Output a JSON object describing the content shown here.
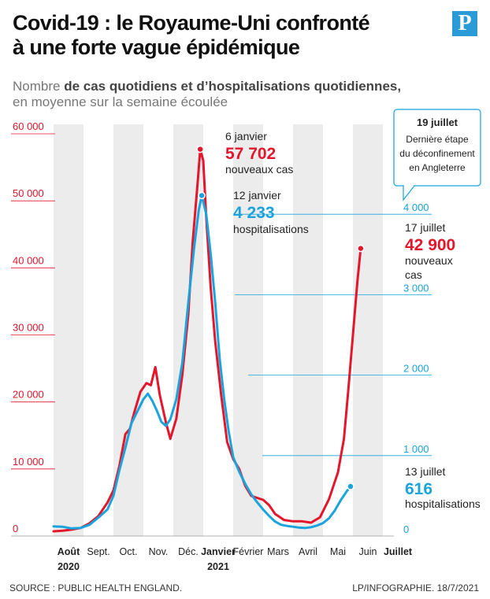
{
  "header": {
    "title_line1": "Covid-19 : le Royaume-Uni confronté",
    "title_line2": "à une forte vague épidémique",
    "logo_letter": "P",
    "subtitle_pre": "Nombre ",
    "subtitle_bold": "de cas quotidiens et d’hospitalisations quotidiennes,",
    "subtitle_line2": "en moyenne sur la semaine écoulée"
  },
  "footer": {
    "source": "SOURCE : PUBLIC HEALTH ENGLAND.",
    "credit": "LP/INFOGRAPHIE.  18/7/2021"
  },
  "colors": {
    "cases": "#e3162b",
    "hospital": "#1aa3dd",
    "band": "#ececec",
    "text": "#222222"
  },
  "chart_data": {
    "type": "line",
    "x_months": [
      "Août",
      "Sept.",
      "Oct.",
      "Nov.",
      "Déc.",
      "Janvier",
      "Février",
      "Mars",
      "Avril",
      "Mai",
      "Juin",
      "Juillet"
    ],
    "x_years": [
      "2020",
      "2021"
    ],
    "y_left": {
      "ticks": [
        "60 000",
        "50 000",
        "40 000",
        "30 000",
        "20 000",
        "10 000",
        "0"
      ],
      "lim": [
        0,
        60000
      ]
    },
    "y_right": {
      "ticks": [
        "4 000",
        "3 000",
        "2 000",
        "1 000",
        "0"
      ],
      "lim": [
        0,
        5000
      ]
    },
    "series": [
      {
        "key": "cases",
        "color": "#e3162b",
        "points": [
          [
            0,
            700
          ],
          [
            0.3,
            800
          ],
          [
            0.6,
            950
          ],
          [
            0.9,
            1200
          ],
          [
            1.2,
            1900
          ],
          [
            1.5,
            3000
          ],
          [
            1.8,
            5000
          ],
          [
            2.0,
            6800
          ],
          [
            2.2,
            10500
          ],
          [
            2.4,
            15200
          ],
          [
            2.55,
            16000
          ],
          [
            2.7,
            18500
          ],
          [
            2.9,
            21500
          ],
          [
            3.1,
            22800
          ],
          [
            3.25,
            22500
          ],
          [
            3.4,
            25200
          ],
          [
            3.55,
            21000
          ],
          [
            3.75,
            17000
          ],
          [
            3.9,
            14500
          ],
          [
            4.1,
            17500
          ],
          [
            4.3,
            24000
          ],
          [
            4.5,
            33000
          ],
          [
            4.65,
            44000
          ],
          [
            4.8,
            52000
          ],
          [
            4.9,
            57700
          ],
          [
            5.0,
            56000
          ],
          [
            5.1,
            47500
          ],
          [
            5.25,
            37000
          ],
          [
            5.4,
            29000
          ],
          [
            5.6,
            21000
          ],
          [
            5.8,
            14000
          ],
          [
            6.0,
            11500
          ],
          [
            6.2,
            10000
          ],
          [
            6.4,
            7500
          ],
          [
            6.6,
            6000
          ],
          [
            6.8,
            5700
          ],
          [
            7.0,
            5400
          ],
          [
            7.2,
            4600
          ],
          [
            7.4,
            3300
          ],
          [
            7.7,
            2400
          ],
          [
            8.0,
            2200
          ],
          [
            8.3,
            2200
          ],
          [
            8.6,
            2000
          ],
          [
            8.9,
            2800
          ],
          [
            9.2,
            5500
          ],
          [
            9.5,
            9500
          ],
          [
            9.7,
            14500
          ],
          [
            9.85,
            22000
          ],
          [
            10.0,
            30000
          ],
          [
            10.15,
            38000
          ],
          [
            10.26,
            42900
          ]
        ]
      },
      {
        "key": "hospital",
        "color": "#1aa3dd",
        "points": [
          [
            0,
            120
          ],
          [
            0.3,
            115
          ],
          [
            0.6,
            95
          ],
          [
            0.9,
            100
          ],
          [
            1.2,
            140
          ],
          [
            1.5,
            230
          ],
          [
            1.8,
            330
          ],
          [
            2.0,
            500
          ],
          [
            2.2,
            820
          ],
          [
            2.4,
            1100
          ],
          [
            2.6,
            1400
          ],
          [
            2.8,
            1550
          ],
          [
            3.0,
            1700
          ],
          [
            3.15,
            1770
          ],
          [
            3.3,
            1680
          ],
          [
            3.45,
            1560
          ],
          [
            3.6,
            1420
          ],
          [
            3.75,
            1370
          ],
          [
            3.9,
            1450
          ],
          [
            4.1,
            1700
          ],
          [
            4.3,
            2150
          ],
          [
            4.5,
            2900
          ],
          [
            4.7,
            3600
          ],
          [
            4.85,
            4050
          ],
          [
            4.95,
            4233
          ],
          [
            5.1,
            4000
          ],
          [
            5.25,
            3500
          ],
          [
            5.4,
            2900
          ],
          [
            5.55,
            2200
          ],
          [
            5.7,
            1700
          ],
          [
            5.85,
            1300
          ],
          [
            6.0,
            980
          ],
          [
            6.2,
            800
          ],
          [
            6.4,
            650
          ],
          [
            6.6,
            520
          ],
          [
            6.8,
            420
          ],
          [
            7.0,
            330
          ],
          [
            7.2,
            250
          ],
          [
            7.4,
            180
          ],
          [
            7.6,
            140
          ],
          [
            7.8,
            125
          ],
          [
            8.0,
            115
          ],
          [
            8.2,
            105
          ],
          [
            8.4,
            100
          ],
          [
            8.6,
            110
          ],
          [
            8.8,
            130
          ],
          [
            9.0,
            160
          ],
          [
            9.2,
            220
          ],
          [
            9.4,
            320
          ],
          [
            9.6,
            450
          ],
          [
            9.8,
            560
          ],
          [
            9.92,
            616
          ]
        ]
      }
    ],
    "annotations": {
      "peak_cases": {
        "date": "6 janvier",
        "value": "57 702",
        "label": "nouveaux cas"
      },
      "peak_hosp": {
        "date": "12 janvier",
        "value": "4 233",
        "label": "hospitalisations"
      },
      "last_cases": {
        "date": "17 juillet",
        "value": "42 900",
        "label1": "nouveaux",
        "label2": "cas"
      },
      "last_hosp": {
        "date": "13 juillet",
        "value": "616",
        "label": "hospitalisations"
      },
      "callout": {
        "title": "19 juillet",
        "line1": "Dernière étape",
        "line2": "du déconfinement",
        "line3": "en Angleterre"
      }
    }
  }
}
